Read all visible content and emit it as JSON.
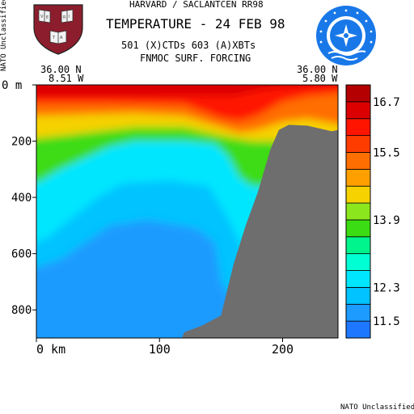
{
  "header": {
    "line1": "HARVARD / SACLANTCEN RR98",
    "title": "TEMPERATURE - 24 FEB 98",
    "line3": "501 (X)CTDs   603 (A)XBTs",
    "line4": "FNMOC SURF. FORCING"
  },
  "classification": {
    "side": "NATO Unclassified",
    "bottom": "NATO Unclassified"
  },
  "crest_icon": "harvard-crest-icon",
  "emblem_icon": "saclantcen-emblem-icon",
  "colors": {
    "land": "#6e6e6e",
    "scale": [
      "#1e78ff",
      "#1e9bff",
      "#00c3ff",
      "#00e6ff",
      "#00ffd2",
      "#00f58c",
      "#3cdc14",
      "#8ce61e",
      "#f5d200",
      "#ffa000",
      "#ff6e00",
      "#ff3c00",
      "#ff1400",
      "#dc0000",
      "#b40000"
    ]
  },
  "chart_data": {
    "type": "heatmap",
    "title": "TEMPERATURE - 24 FEB 98",
    "corner_left": {
      "lat": "36.00 N",
      "lon": "8.51 W"
    },
    "corner_right": {
      "lat": "36.00 N",
      "lon": "5.80 W"
    },
    "xlabel": "km",
    "ylabel": "m",
    "xlim": [
      0,
      245
    ],
    "ylim": [
      0,
      900
    ],
    "x_ticks": [
      0,
      100,
      200
    ],
    "x_tick_labels": [
      "0 km",
      "100",
      "200"
    ],
    "y_ticks": [
      0,
      200,
      400,
      600,
      800
    ],
    "y_tick_labels": [
      "0 m",
      "200",
      "400",
      "600",
      "800"
    ],
    "colorbar_labels": [
      "16.7",
      "15.5",
      "13.9",
      "12.3",
      "11.5"
    ],
    "colorbar_label_values": [
      16.7,
      15.5,
      13.9,
      12.3,
      11.5
    ],
    "colorbar_range": [
      11.1,
      17.1
    ],
    "isotherms": [
      {
        "value": 16.5,
        "depth": [
          [
            0,
            40
          ],
          [
            60,
            40
          ],
          [
            120,
            40
          ],
          [
            160,
            40
          ],
          [
            180,
            20
          ],
          [
            200,
            10
          ],
          [
            220,
            5
          ],
          [
            245,
            0
          ]
        ]
      },
      {
        "value": 16.0,
        "depth": [
          [
            0,
            65
          ],
          [
            60,
            65
          ],
          [
            120,
            70
          ],
          [
            150,
            120
          ],
          [
            165,
            130
          ],
          [
            180,
            110
          ],
          [
            200,
            60
          ],
          [
            220,
            40
          ],
          [
            245,
            30
          ]
        ]
      },
      {
        "value": 15.3,
        "depth": [
          [
            0,
            110
          ],
          [
            40,
            105
          ],
          [
            80,
            100
          ],
          [
            120,
            110
          ],
          [
            150,
            150
          ],
          [
            165,
            170
          ],
          [
            180,
            160
          ],
          [
            200,
            130
          ],
          [
            220,
            120
          ],
          [
            245,
            140
          ]
        ]
      },
      {
        "value": 14.5,
        "depth": [
          [
            0,
            190
          ],
          [
            40,
            170
          ],
          [
            80,
            150
          ],
          [
            120,
            150
          ],
          [
            150,
            180
          ],
          [
            175,
            200
          ],
          [
            245,
            200
          ]
        ]
      },
      {
        "value": 13.5,
        "depth": [
          [
            0,
            350
          ],
          [
            20,
            300
          ],
          [
            40,
            260
          ],
          [
            60,
            220
          ],
          [
            80,
            200
          ],
          [
            120,
            200
          ],
          [
            145,
            210
          ],
          [
            155,
            250
          ],
          [
            165,
            330
          ],
          [
            175,
            360
          ],
          [
            245,
            360
          ]
        ]
      },
      {
        "value": 12.5,
        "depth": [
          [
            0,
            560
          ],
          [
            10,
            540
          ],
          [
            30,
            470
          ],
          [
            50,
            400
          ],
          [
            70,
            350
          ],
          [
            110,
            340
          ],
          [
            140,
            360
          ],
          [
            155,
            470
          ],
          [
            170,
            600
          ],
          [
            245,
            600
          ]
        ]
      },
      {
        "value": 12.0,
        "depth": [
          [
            0,
            650
          ],
          [
            20,
            620
          ],
          [
            40,
            560
          ],
          [
            60,
            500
          ],
          [
            90,
            480
          ],
          [
            130,
            510
          ],
          [
            145,
            560
          ],
          [
            150,
            700
          ],
          [
            160,
            770
          ],
          [
            245,
            780
          ]
        ]
      }
    ],
    "seabed": [
      [
        0,
        1000
      ],
      [
        110,
        1000
      ],
      [
        120,
        880
      ],
      [
        135,
        855
      ],
      [
        150,
        820
      ],
      [
        160,
        640
      ],
      [
        170,
        500
      ],
      [
        180,
        380
      ],
      [
        190,
        230
      ],
      [
        197,
        160
      ],
      [
        205,
        142
      ],
      [
        220,
        145
      ],
      [
        240,
        165
      ],
      [
        245,
        160
      ]
    ]
  }
}
